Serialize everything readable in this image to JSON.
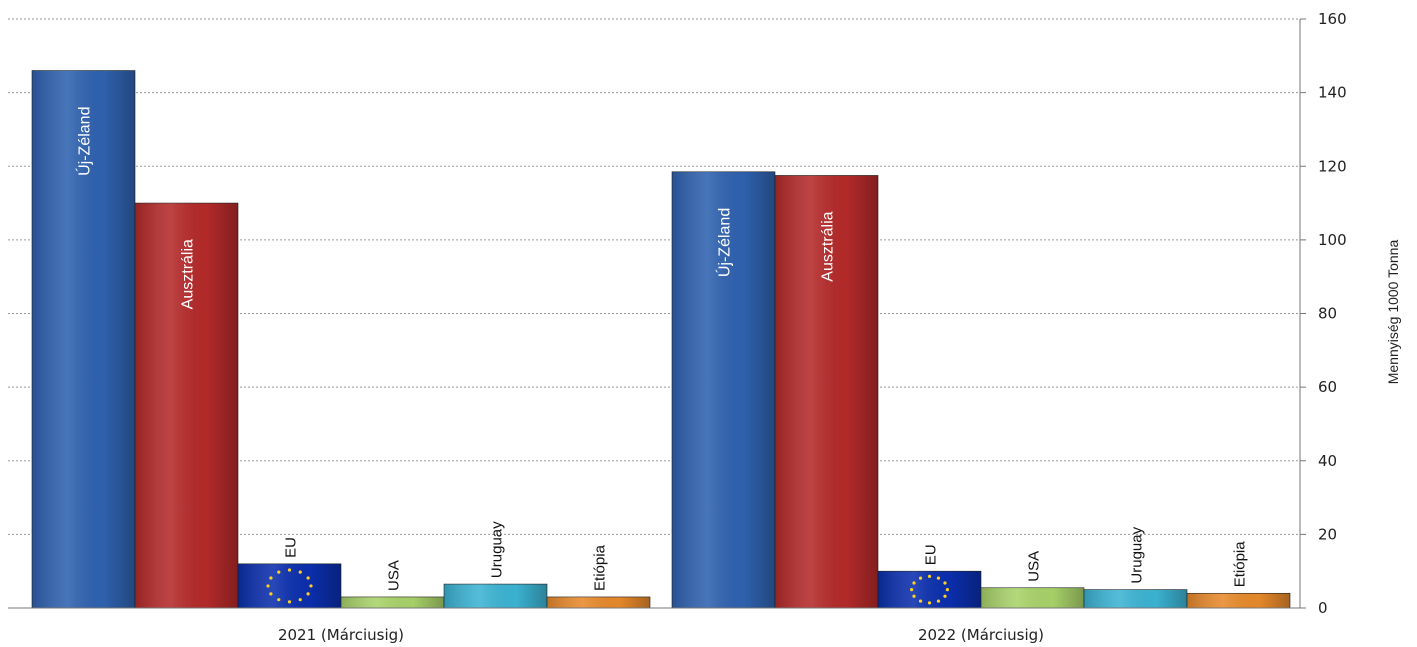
{
  "chart_data": {
    "type": "bar",
    "categories": [
      "2021 (Márciusig)",
      "2022 (Márciusig)"
    ],
    "series": [
      {
        "name": "Új-Zéland",
        "values": [
          146,
          118.5
        ],
        "color": "#2f62b0"
      },
      {
        "name": "Ausztrália",
        "values": [
          110,
          117.5
        ],
        "color": "#b52a2a"
      },
      {
        "name": "EU",
        "values": [
          12,
          10
        ],
        "color": "#0b2fae"
      },
      {
        "name": "USA",
        "values": [
          3,
          5.5
        ],
        "color": "#a9d36a"
      },
      {
        "name": "Uruguay",
        "values": [
          6.5,
          5
        ],
        "color": "#3cb4d4"
      },
      {
        "name": "Etiópia",
        "values": [
          3,
          4
        ],
        "color": "#e88a2c"
      }
    ],
    "title": "",
    "xlabel": "",
    "ylabel": "Mennyiség 1000 Tonna",
    "ylim": [
      0,
      160
    ],
    "yticks": [
      "0",
      "20",
      "40",
      "60",
      "80",
      "100",
      "120",
      "140",
      "160"
    ],
    "y_axis_side": "right",
    "grid": true,
    "legend": "none",
    "label_placement": {
      "inside": [
        "Új-Zéland",
        "Ausztrália"
      ],
      "above": [
        "EU",
        "USA",
        "Uruguay",
        "Etiópia"
      ]
    },
    "eu_flag_pattern": true
  }
}
